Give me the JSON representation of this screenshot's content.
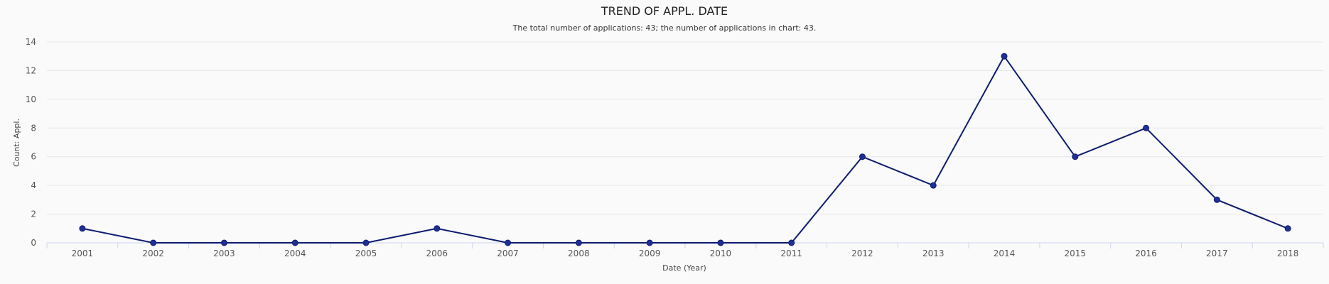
{
  "chart_data": {
    "type": "line",
    "title": "TREND OF APPL. DATE",
    "subtitle": "The total number of applications: 43; the number of applications in chart: 43.",
    "xlabel": "Date (Year)",
    "ylabel": "Count: Appl.",
    "categories": [
      "2001",
      "2002",
      "2003",
      "2004",
      "2005",
      "2006",
      "2007",
      "2008",
      "2009",
      "2010",
      "2011",
      "2012",
      "2013",
      "2014",
      "2015",
      "2016",
      "2017",
      "2018"
    ],
    "series": [
      {
        "values": [
          1,
          0,
          0,
          0,
          0,
          1,
          0,
          0,
          0,
          0,
          0,
          6,
          4,
          13,
          6,
          8,
          3,
          1
        ]
      }
    ],
    "ylim": [
      0,
      14
    ],
    "yticks": [
      0,
      2,
      4,
      6,
      8,
      10,
      12,
      14
    ],
    "grid": true,
    "legend": "none",
    "colors": {
      "line": "#0d1b6e",
      "marker": "#1f2f95"
    }
  }
}
